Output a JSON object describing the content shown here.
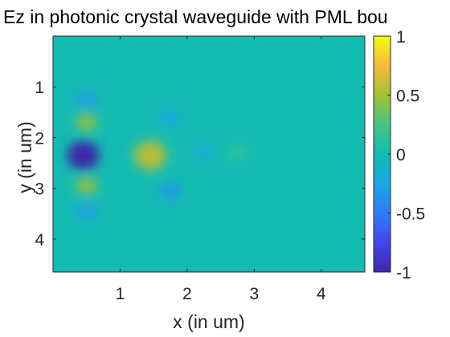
{
  "chart_data": {
    "type": "heatmap",
    "title": "Ez in photonic crystal waveguide with PML bou",
    "xlabel": "x (in um)",
    "ylabel": "y (in um)",
    "xlim": [
      0,
      4.65
    ],
    "ylim": [
      0,
      4.65
    ],
    "y_reversed": true,
    "x_ticks": [
      "1",
      "2",
      "3",
      "4"
    ],
    "x_tick_values": [
      1,
      2,
      3,
      4
    ],
    "y_ticks": [
      "1",
      "2",
      "3",
      "4"
    ],
    "y_tick_values": [
      1,
      2,
      3,
      4
    ],
    "colorbar": {
      "range": [
        -1,
        1
      ],
      "ticks": [
        "1",
        "0.5",
        "0",
        "-0.5",
        "-1"
      ],
      "tick_values": [
        1,
        0.5,
        0,
        -0.5,
        -1
      ],
      "colormap": "parula"
    },
    "features": [
      {
        "x": 0.45,
        "y": 2.35,
        "value": -1.0,
        "note": "strong negative lobe"
      },
      {
        "x": 1.45,
        "y": 2.35,
        "value": 0.55,
        "note": "positive lobe"
      },
      {
        "x": 0.5,
        "y": 1.7,
        "value": 0.45
      },
      {
        "x": 0.5,
        "y": 2.95,
        "value": 0.45
      },
      {
        "x": 0.5,
        "y": 1.25,
        "value": -0.3
      },
      {
        "x": 0.5,
        "y": 3.45,
        "value": -0.3
      },
      {
        "x": 1.75,
        "y": 3.05,
        "value": -0.35
      },
      {
        "x": 1.75,
        "y": 1.6,
        "value": -0.25
      },
      {
        "x": 2.25,
        "y": 2.3,
        "value": -0.2
      },
      {
        "x": 2.75,
        "y": 2.3,
        "value": 0.12
      }
    ],
    "grid": false
  }
}
